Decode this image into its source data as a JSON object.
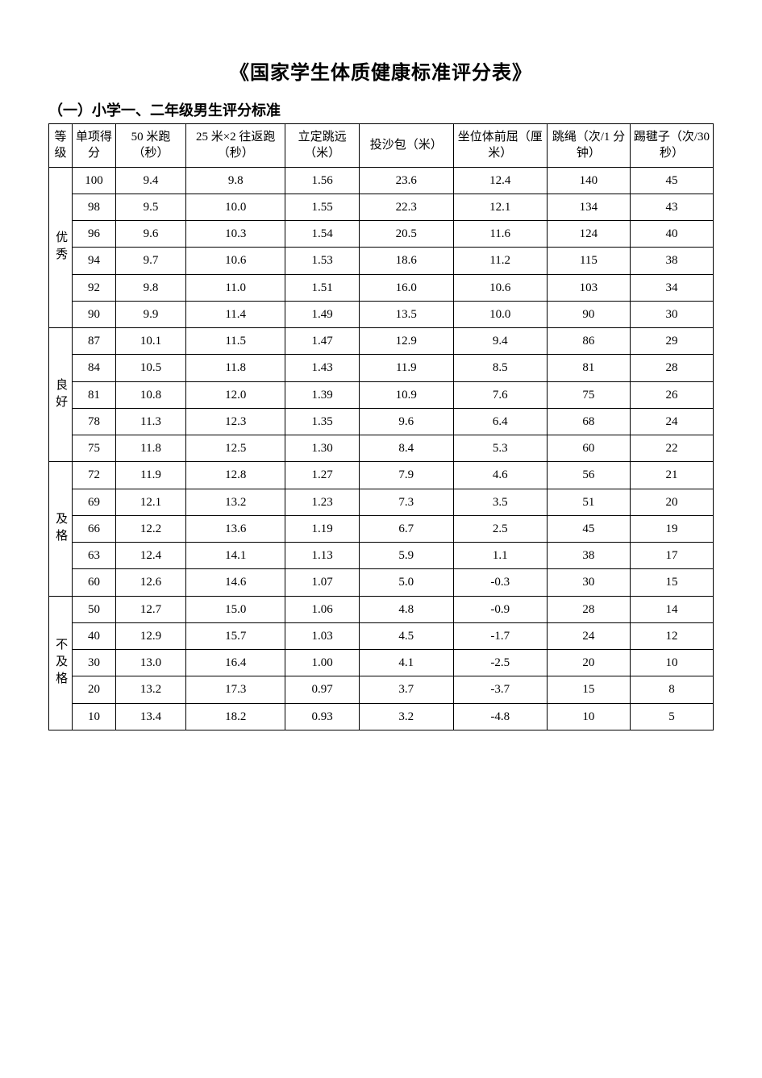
{
  "title": "《国家学生体质健康标准评分表》",
  "subtitle": "（一）小学一、二年级男生评分标准",
  "columns": [
    "等级",
    "单项得分",
    "50 米跑（秒）",
    "25 米×2 往返跑（秒）",
    "立定跳远（米）",
    "投沙包（米）",
    "坐位体前屈（厘米）",
    "跳绳（次/1 分钟）",
    "踢毽子（次/30 秒）"
  ],
  "groups": [
    {
      "label": "优秀",
      "rows": [
        [
          "100",
          "9.4",
          "9.8",
          "1.56",
          "23.6",
          "12.4",
          "140",
          "45"
        ],
        [
          "98",
          "9.5",
          "10.0",
          "1.55",
          "22.3",
          "12.1",
          "134",
          "43"
        ],
        [
          "96",
          "9.6",
          "10.3",
          "1.54",
          "20.5",
          "11.6",
          "124",
          "40"
        ],
        [
          "94",
          "9.7",
          "10.6",
          "1.53",
          "18.6",
          "11.2",
          "115",
          "38"
        ],
        [
          "92",
          "9.8",
          "11.0",
          "1.51",
          "16.0",
          "10.6",
          "103",
          "34"
        ],
        [
          "90",
          "9.9",
          "11.4",
          "1.49",
          "13.5",
          "10.0",
          "90",
          "30"
        ]
      ]
    },
    {
      "label": "良好",
      "rows": [
        [
          "87",
          "10.1",
          "11.5",
          "1.47",
          "12.9",
          "9.4",
          "86",
          "29"
        ],
        [
          "84",
          "10.5",
          "11.8",
          "1.43",
          "11.9",
          "8.5",
          "81",
          "28"
        ],
        [
          "81",
          "10.8",
          "12.0",
          "1.39",
          "10.9",
          "7.6",
          "75",
          "26"
        ],
        [
          "78",
          "11.3",
          "12.3",
          "1.35",
          "9.6",
          "6.4",
          "68",
          "24"
        ],
        [
          "75",
          "11.8",
          "12.5",
          "1.30",
          "8.4",
          "5.3",
          "60",
          "22"
        ]
      ]
    },
    {
      "label": "及格",
      "rows": [
        [
          "72",
          "11.9",
          "12.8",
          "1.27",
          "7.9",
          "4.6",
          "56",
          "21"
        ],
        [
          "69",
          "12.1",
          "13.2",
          "1.23",
          "7.3",
          "3.5",
          "51",
          "20"
        ],
        [
          "66",
          "12.2",
          "13.6",
          "1.19",
          "6.7",
          "2.5",
          "45",
          "19"
        ],
        [
          "63",
          "12.4",
          "14.1",
          "1.13",
          "5.9",
          "1.1",
          "38",
          "17"
        ],
        [
          "60",
          "12.6",
          "14.6",
          "1.07",
          "5.0",
          "-0.3",
          "30",
          "15"
        ]
      ]
    },
    {
      "label": "不及格",
      "rows": [
        [
          "50",
          "12.7",
          "15.0",
          "1.06",
          "4.8",
          "-0.9",
          "28",
          "14"
        ],
        [
          "40",
          "12.9",
          "15.7",
          "1.03",
          "4.5",
          "-1.7",
          "24",
          "12"
        ],
        [
          "30",
          "13.0",
          "16.4",
          "1.00",
          "4.1",
          "-2.5",
          "20",
          "10"
        ],
        [
          "20",
          "13.2",
          "17.3",
          "0.97",
          "3.7",
          "-3.7",
          "15",
          "8"
        ],
        [
          "10",
          "13.4",
          "18.2",
          "0.93",
          "3.2",
          "-4.8",
          "10",
          "5"
        ]
      ]
    }
  ]
}
